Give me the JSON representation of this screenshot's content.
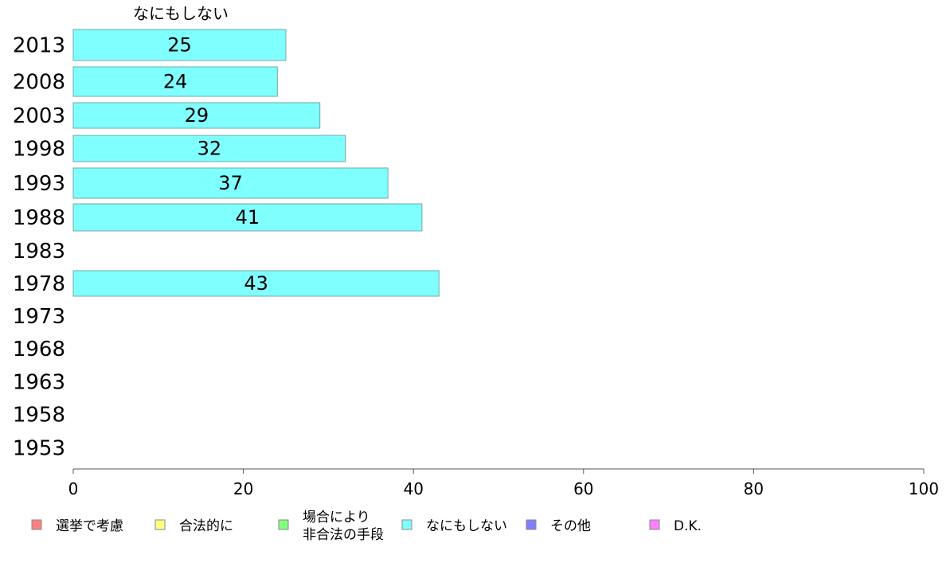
{
  "chart_data": {
    "type": "bar",
    "orientation": "horizontal",
    "title": "なにもしない",
    "categories": [
      "2013",
      "2008",
      "2003",
      "1998",
      "1993",
      "1988",
      "1983",
      "1978",
      "1973",
      "1968",
      "1963",
      "1958",
      "1953"
    ],
    "series": [
      {
        "name": "なにもしない",
        "color": "#80ffff",
        "values": [
          25,
          24,
          29,
          32,
          37,
          41,
          null,
          43,
          null,
          null,
          null,
          null,
          null
        ]
      }
    ],
    "xlim": [
      0,
      100
    ],
    "xticks": [
      0,
      20,
      40,
      60,
      80,
      100
    ],
    "xlabel": "",
    "ylabel": "",
    "grid": false,
    "legend_position": "bottom",
    "legend": [
      {
        "lines": [
          "選挙で考慮"
        ],
        "color": "#ff8080"
      },
      {
        "lines": [
          "合法的に"
        ],
        "color": "#ffff80"
      },
      {
        "lines": [
          "場合により",
          "非合法の手段"
        ],
        "color": "#80ff80"
      },
      {
        "lines": [
          "なにもしない"
        ],
        "color": "#80ffff"
      },
      {
        "lines": [
          "その他"
        ],
        "color": "#8080ff"
      },
      {
        "lines": [
          "D.K."
        ],
        "color": "#ff80ff"
      }
    ]
  }
}
